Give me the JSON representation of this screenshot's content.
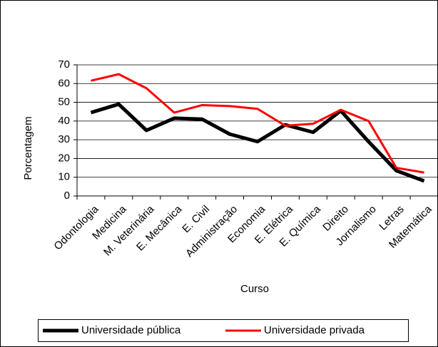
{
  "chart_data": {
    "type": "line",
    "x_label": "Curso",
    "y_label": "Porcentagem",
    "categories": [
      "Odontologia",
      "Medicina",
      "M. Veterinária",
      "E. Mecânica",
      "E. Civil",
      "Administração",
      "Economia",
      "E. Elétrica",
      "E. Química",
      "Direito",
      "Jornalismo",
      "Letras",
      "Matemática"
    ],
    "series": [
      {
        "name": "Universidade pública",
        "color": "#000000",
        "width": 5,
        "values": [
          44.5,
          49,
          35,
          41.5,
          41,
          33,
          29,
          38,
          34,
          45.5,
          29,
          13.5,
          8
        ]
      },
      {
        "name": "Universidade privada",
        "color": "#ff0000",
        "width": 3,
        "values": [
          61.5,
          65,
          57.5,
          44.5,
          48.5,
          48,
          46.5,
          37.5,
          38.5,
          46,
          40,
          15,
          12.5
        ]
      }
    ],
    "ylim": [
      0,
      70
    ],
    "yticks": [
      0,
      10,
      20,
      30,
      40,
      50,
      60,
      70
    ],
    "grid": true,
    "legend": "bottom"
  }
}
